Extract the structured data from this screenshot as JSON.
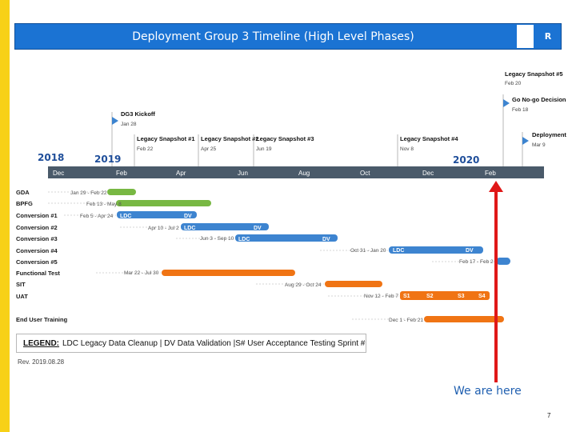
{
  "title": "Deployment Group 3 Timeline (High Level Phases)",
  "title_mark": "R",
  "colors": {
    "title_bar": "#1b73d3",
    "side_stripe": "#f7d117",
    "axis_bar": "#4a5a6a",
    "green_bar": "#78b843",
    "blue_bar": "#3d84d0",
    "orange_bar": "#f07414",
    "today_marker": "#e01818",
    "milestone_flag": "#3d84d0"
  },
  "milestones": [
    {
      "name": "Legacy Snapshot #5",
      "date": "Feb 20"
    },
    {
      "name": "Go No-go Decision",
      "date": "Feb 18"
    },
    {
      "name": "Deployment",
      "date": "Mar 9"
    },
    {
      "name": "DG3 Kickoff",
      "date": "Jan 28"
    },
    {
      "name": "Legacy Snapshot #1",
      "date": "Feb 22"
    },
    {
      "name": "Legacy Snapshot #2",
      "date": "Apr 25"
    },
    {
      "name": "Legacy Snapshot #3",
      "date": "Jun 19"
    },
    {
      "name": "Legacy Snapshot #4",
      "date": "Nov 8"
    }
  ],
  "years": [
    "2018",
    "2019",
    "2020"
  ],
  "months": [
    "Dec",
    "Feb",
    "Apr",
    "Jun",
    "Aug",
    "Oct",
    "Dec",
    "Feb"
  ],
  "rows": [
    {
      "label": "GDA",
      "range": "Jan 29 - Feb 22"
    },
    {
      "label": "BPFG",
      "range": "Feb 13 - May 8"
    },
    {
      "label": "Conversion #1",
      "range": "Feb 5 - Apr 24",
      "tags": [
        "LDC",
        "DV"
      ]
    },
    {
      "label": "Conversion #2",
      "range": "Apr 10 - Jul 2",
      "tags": [
        "LDC",
        "DV"
      ]
    },
    {
      "label": "Conversion #3",
      "range": "Jun 3 - Sep 10",
      "tags": [
        "LDC",
        "DV"
      ]
    },
    {
      "label": "Conversion #4",
      "range": "Oct 31 - Jan 20",
      "tags": [
        "LDC",
        "DV"
      ]
    },
    {
      "label": "Conversion #5",
      "range": "Feb 17 - Feb 2"
    },
    {
      "label": "Functional Test",
      "range": "Mar 22 - Jul 30"
    },
    {
      "label": "SIT",
      "range": "Aug 29 - Oct 24"
    },
    {
      "label": "UAT",
      "range": "Nov 12 - Feb 7",
      "tags": [
        "S1",
        "S2",
        "S3",
        "S4"
      ]
    },
    {
      "label": "End User Training",
      "range": "Dec 1 - Feb 21"
    }
  ],
  "legend": {
    "key": "LEGEND:",
    "text": "LDC Legacy Data Cleanup | DV Data Validation |S# User Acceptance Testing Sprint #"
  },
  "revision": "Rev. 2019.08.28",
  "today_label": "We are here",
  "page_number": "7"
}
